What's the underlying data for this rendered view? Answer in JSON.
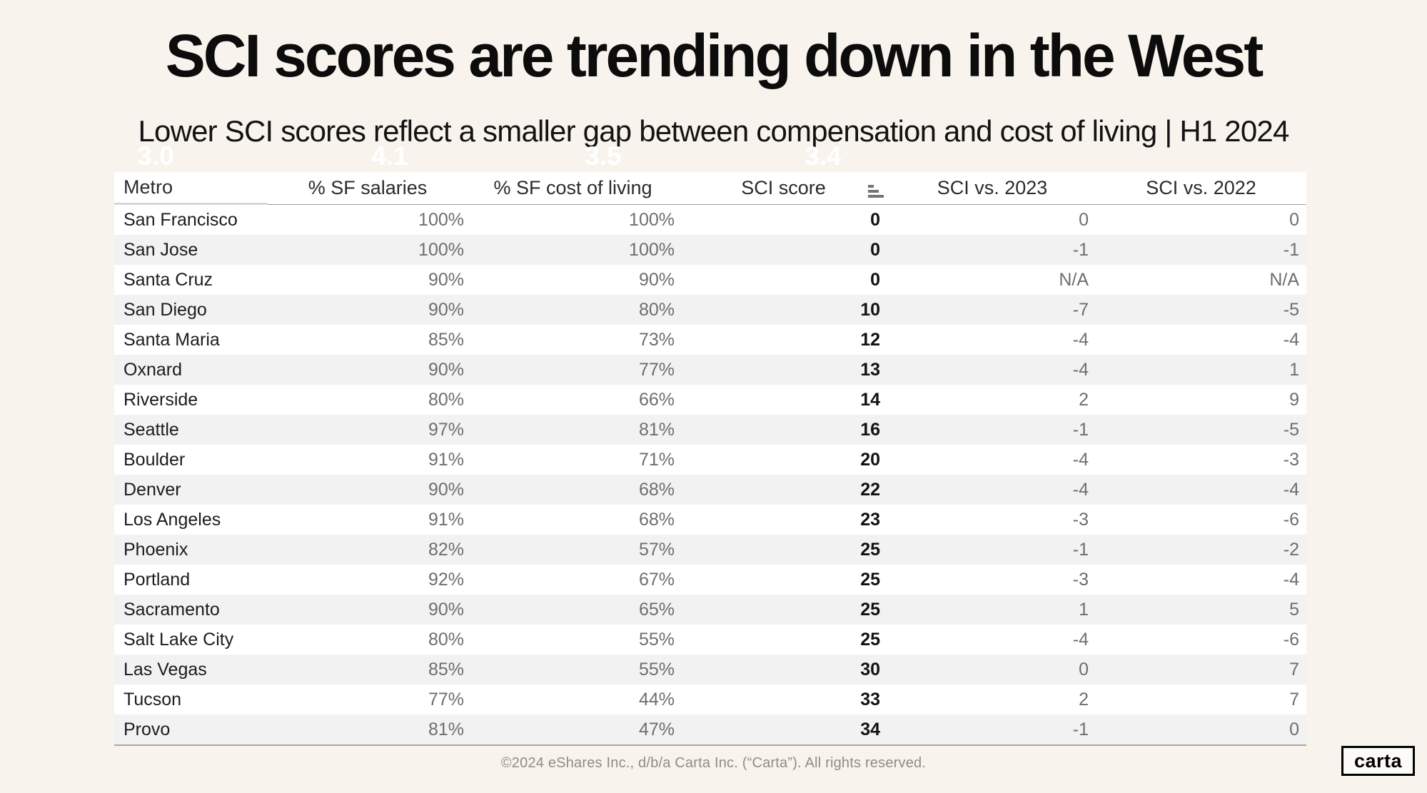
{
  "page": {
    "footer": "©2024 eShares Inc., d/b/a Carta Inc. (“Carta”). All rights reserved.",
    "logo_text": "carta",
    "background_color": "#f8f4ed",
    "stripe_color": "#f2f2f2"
  },
  "ghost_labels": [
    "3.0",
    "4.1",
    "3.5",
    "3.4"
  ],
  "chart_data": {
    "type": "table",
    "title": "SCI scores are trending down in the West",
    "subtitle": "Lower SCI scores reflect a smaller gap between compensation and cost of living | H1 2024",
    "columns": [
      "Metro",
      "% SF salaries",
      "% SF cost of living",
      "SCI score",
      "SCI vs. 2023",
      "SCI vs. 2022"
    ],
    "sort_icon": "sort-ascending-bars",
    "rows": [
      [
        "San Francisco",
        "100%",
        "100%",
        "0",
        "0",
        "0"
      ],
      [
        "San Jose",
        "100%",
        "100%",
        "0",
        "-1",
        "-1"
      ],
      [
        "Santa Cruz",
        "90%",
        "90%",
        "0",
        "N/A",
        "N/A"
      ],
      [
        "San Diego",
        "90%",
        "80%",
        "10",
        "-7",
        "-5"
      ],
      [
        "Santa Maria",
        "85%",
        "73%",
        "12",
        "-4",
        "-4"
      ],
      [
        "Oxnard",
        "90%",
        "77%",
        "13",
        "-4",
        "1"
      ],
      [
        "Riverside",
        "80%",
        "66%",
        "14",
        "2",
        "9"
      ],
      [
        "Seattle",
        "97%",
        "81%",
        "16",
        "-1",
        "-5"
      ],
      [
        "Boulder",
        "91%",
        "71%",
        "20",
        "-4",
        "-3"
      ],
      [
        "Denver",
        "90%",
        "68%",
        "22",
        "-4",
        "-4"
      ],
      [
        "Los Angeles",
        "91%",
        "68%",
        "23",
        "-3",
        "-6"
      ],
      [
        "Phoenix",
        "82%",
        "57%",
        "25",
        "-1",
        "-2"
      ],
      [
        "Portland",
        "92%",
        "67%",
        "25",
        "-3",
        "-4"
      ],
      [
        "Sacramento",
        "90%",
        "65%",
        "25",
        "1",
        "5"
      ],
      [
        "Salt Lake City",
        "80%",
        "55%",
        "25",
        "-4",
        "-6"
      ],
      [
        "Las Vegas",
        "85%",
        "55%",
        "30",
        "0",
        "7"
      ],
      [
        "Tucson",
        "77%",
        "44%",
        "33",
        "2",
        "7"
      ],
      [
        "Provo",
        "81%",
        "47%",
        "34",
        "-1",
        "0"
      ]
    ]
  }
}
